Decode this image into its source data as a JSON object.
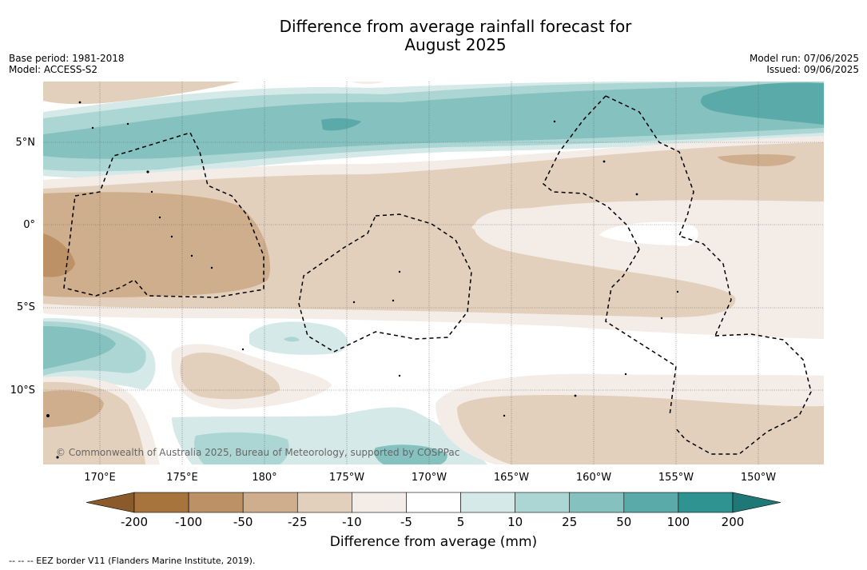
{
  "title_line1": "Difference from average rainfall forecast for",
  "title_line2": "August 2025",
  "meta_left": {
    "base_period": "Base period: 1981-2018",
    "model": "Model: ACCESS-S2"
  },
  "meta_right": {
    "model_run": "Model run: 07/06/2025",
    "issued": "Issued: 09/06/2025"
  },
  "lat_labels": [
    "5°N",
    "0°",
    "5°S",
    "10°S"
  ],
  "lon_labels": [
    "170°E",
    "175°E",
    "180°",
    "175°W",
    "170°W",
    "165°W",
    "160°W",
    "155°W",
    "150°W"
  ],
  "copyright": "© Commonwealth of Australia 2025, Bureau of Meteorology, supported by COSPPac",
  "colorbar": {
    "ticks": [
      "-200",
      "-100",
      "-50",
      "-25",
      "-10",
      "-5",
      "5",
      "10",
      "25",
      "50",
      "100",
      "200"
    ],
    "colors": [
      "#8b5a2b",
      "#a8743e",
      "#bc9166",
      "#cfae8d",
      "#e3d0bc",
      "#f4ece6",
      "#ffffff",
      "#d5eae8",
      "#acd6d4",
      "#84c1bf",
      "#5aaaa9",
      "#2f9491",
      "#1f7875"
    ],
    "title": "Difference from average (mm)"
  },
  "footer": "--  --  -- EEZ border V11 (Flanders Marine Institute, 2019)."
}
